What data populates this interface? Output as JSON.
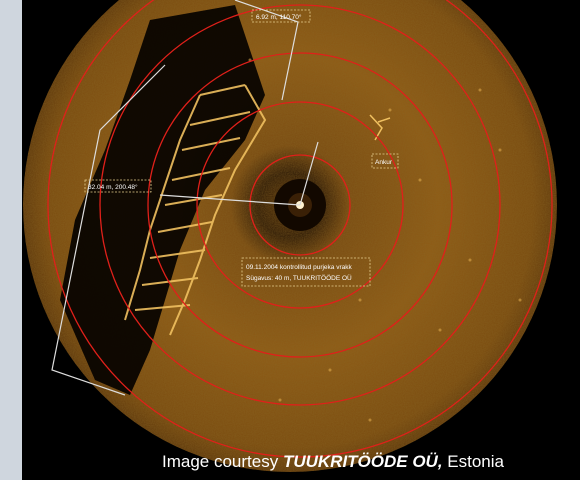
{
  "measurements": {
    "top": "6.92 m, 110.70°",
    "left": "32.04 m, 200.48°"
  },
  "labels": {
    "anchor": "Ankur",
    "note_line1": "09.11.2004 kontrollitud purjeka vrakk",
    "note_line2": "Sügavus: 40 m, TUUKRITÖÖDE OÜ"
  },
  "caption": {
    "prefix": "Image courtesy ",
    "company": "TUUKRITÖÖDE OÜ,",
    "suffix": " Estonia"
  },
  "colors": {
    "range_rings": "#e0201a",
    "seabed": "#8a5410",
    "panel_bg": "#000000",
    "side_strip": "#cfd6de"
  }
}
